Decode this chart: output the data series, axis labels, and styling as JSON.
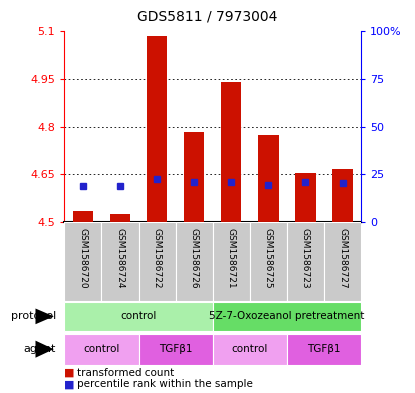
{
  "title": "GDS5811 / 7973004",
  "samples": [
    "GSM1586720",
    "GSM1586724",
    "GSM1586722",
    "GSM1586726",
    "GSM1586721",
    "GSM1586725",
    "GSM1586723",
    "GSM1586727"
  ],
  "red_values": [
    4.535,
    4.525,
    5.085,
    4.785,
    4.94,
    4.775,
    4.655,
    4.668
  ],
  "blue_values": [
    4.615,
    4.615,
    4.637,
    4.625,
    4.627,
    4.617,
    4.627,
    4.622
  ],
  "red_base": 4.5,
  "ylim": [
    4.5,
    5.1
  ],
  "yticks": [
    4.5,
    4.65,
    4.8,
    4.95,
    5.1
  ],
  "ytick_labels": [
    "4.5",
    "4.65",
    "4.8",
    "4.95",
    "5.1"
  ],
  "protocol_labels": [
    [
      "control",
      0,
      4
    ],
    [
      "5Z-7-Oxozeanol pretreatment",
      4,
      8
    ]
  ],
  "protocol_colors": [
    "#aaf0aa",
    "#66dd66"
  ],
  "agent_labels": [
    [
      "control",
      0,
      2
    ],
    [
      "TGFβ1",
      2,
      4
    ],
    [
      "control",
      4,
      6
    ],
    [
      "TGFβ1",
      6,
      8
    ]
  ],
  "agent_colors_list": [
    "#f0a0f0",
    "#e060e0",
    "#f0a0f0",
    "#e060e0"
  ],
  "bar_color": "#cc1100",
  "blue_color": "#2222cc",
  "sample_bg": "#c8c8c8",
  "bar_width": 0.55
}
